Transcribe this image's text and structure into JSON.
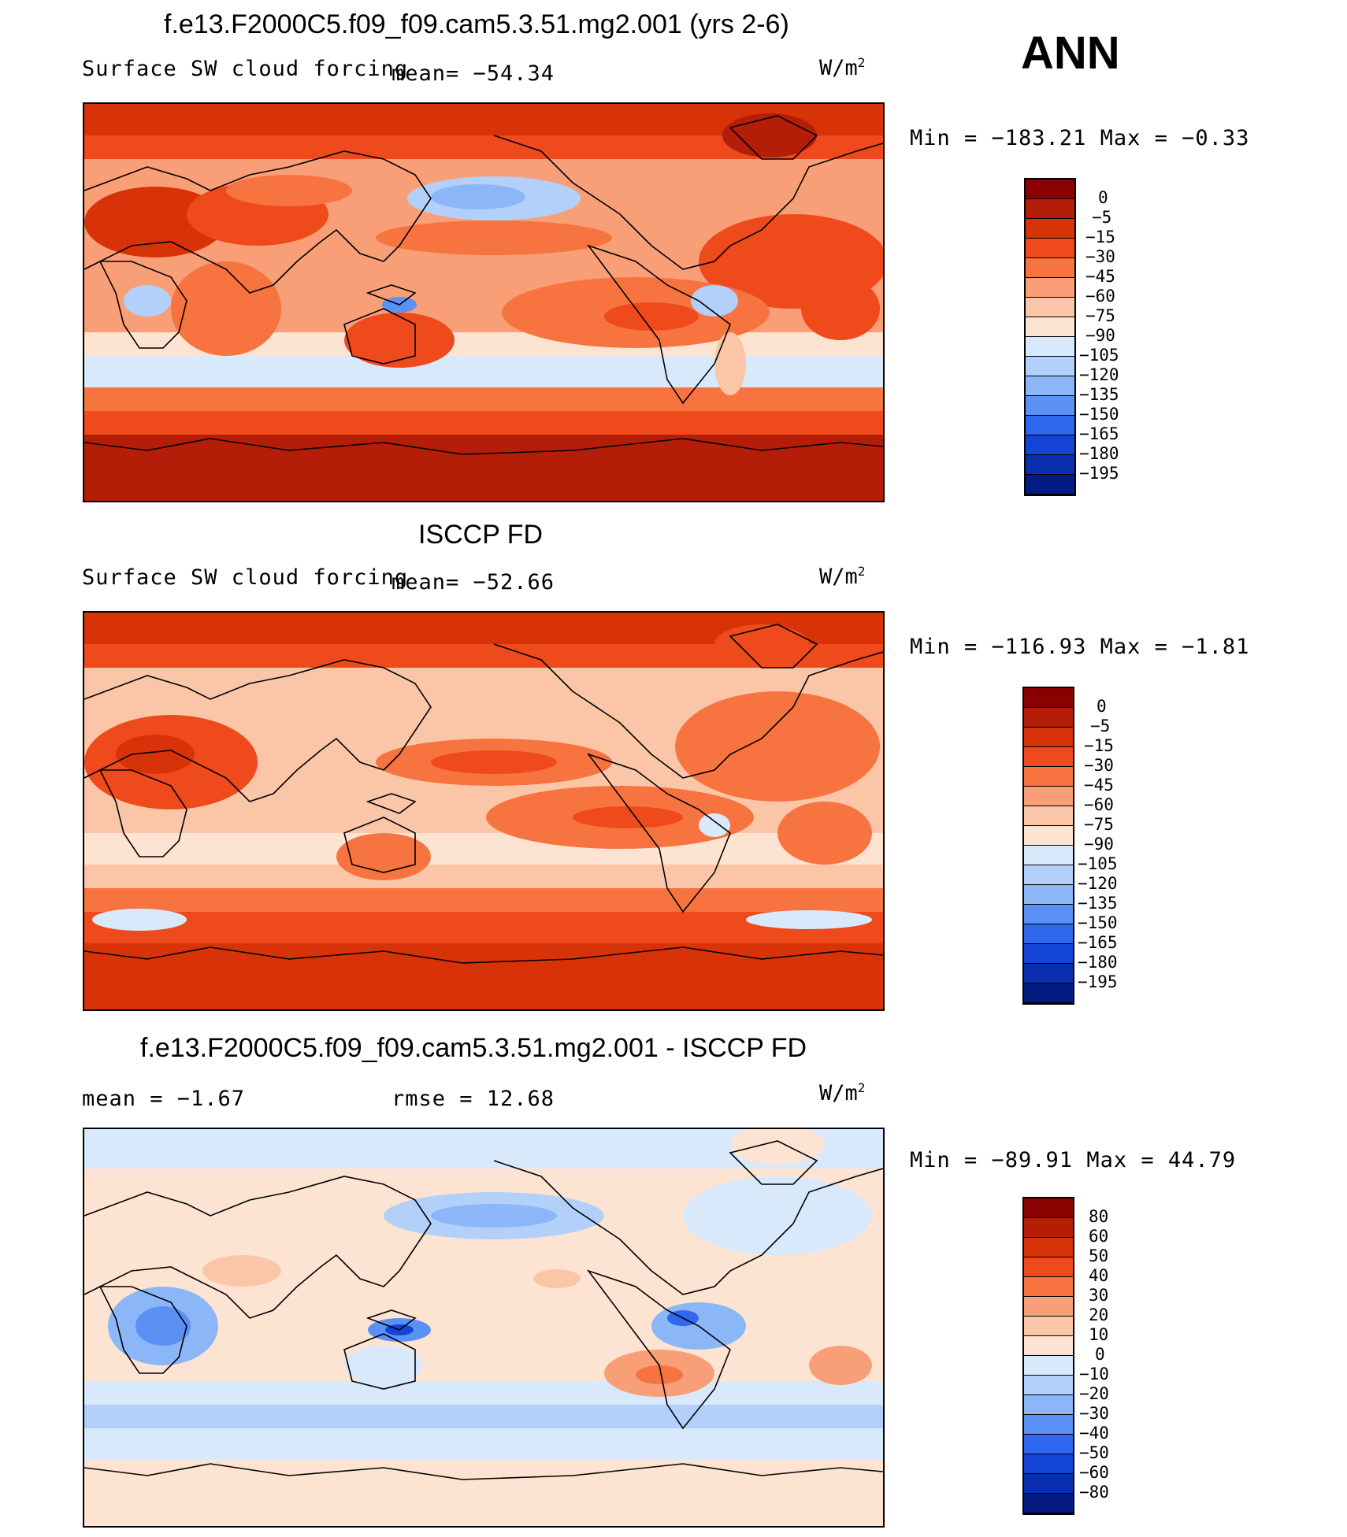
{
  "season": "ANN",
  "colors": {
    "abs_scale": [
      "#8b0000",
      "#b41e08",
      "#d83208",
      "#ef4a1c",
      "#f77441",
      "#f99f77",
      "#fbc6a8",
      "#fde4d2",
      "#d9e9fc",
      "#b3d0fb",
      "#8bb6f8",
      "#5b91f4",
      "#2f67ee",
      "#1443d8",
      "#0a2eb0",
      "#041b82"
    ],
    "diff_scale": [
      "#8b0000",
      "#b41e08",
      "#d83208",
      "#ef4a1c",
      "#f77441",
      "#f99f77",
      "#fbc6a8",
      "#fde4d2",
      "#d9e9fc",
      "#b3d0fb",
      "#8bb6f8",
      "#5b91f4",
      "#2f67ee",
      "#1443d8",
      "#0a2eb0",
      "#041b82"
    ]
  },
  "panels": [
    {
      "title": "f.e13.F2000C5.f09_f09.cam5.3.51.mg2.001 (yrs 2-6)",
      "left_label": "Surface SW cloud forcing",
      "mean_text": "mean= −54.34",
      "units": "W/m",
      "units_sup": "2",
      "minmax": "Min = −183.21 Max =  −0.33",
      "colorbar_labels": [
        "0",
        "−5",
        "−15",
        "−30",
        "−45",
        "−60",
        "−75",
        "−90",
        "−105",
        "−120",
        "−135",
        "−150",
        "−165",
        "−180",
        "−195"
      ]
    },
    {
      "title": "ISCCP FD",
      "left_label": "Surface SW cloud forcing",
      "mean_text": "mean= −52.66",
      "units": "W/m",
      "units_sup": "2",
      "minmax": "Min = −116.93 Max =  −1.81",
      "colorbar_labels": [
        "0",
        "−5",
        "−15",
        "−30",
        "−45",
        "−60",
        "−75",
        "−90",
        "−105",
        "−120",
        "−135",
        "−150",
        "−165",
        "−180",
        "−195"
      ]
    },
    {
      "title": "f.e13.F2000C5.f09_f09.cam5.3.51.mg2.001 - ISCCP FD",
      "left_label": "mean =  −1.67",
      "mean_text": "rmse =  12.68",
      "units": "W/m",
      "units_sup": "2",
      "minmax": "Min = −89.91 Max =  44.79",
      "colorbar_labels": [
        "80",
        "60",
        "50",
        "40",
        "30",
        "20",
        "10",
        "0",
        "−10",
        "−20",
        "−30",
        "−40",
        "−50",
        "−60",
        "−80"
      ]
    }
  ]
}
